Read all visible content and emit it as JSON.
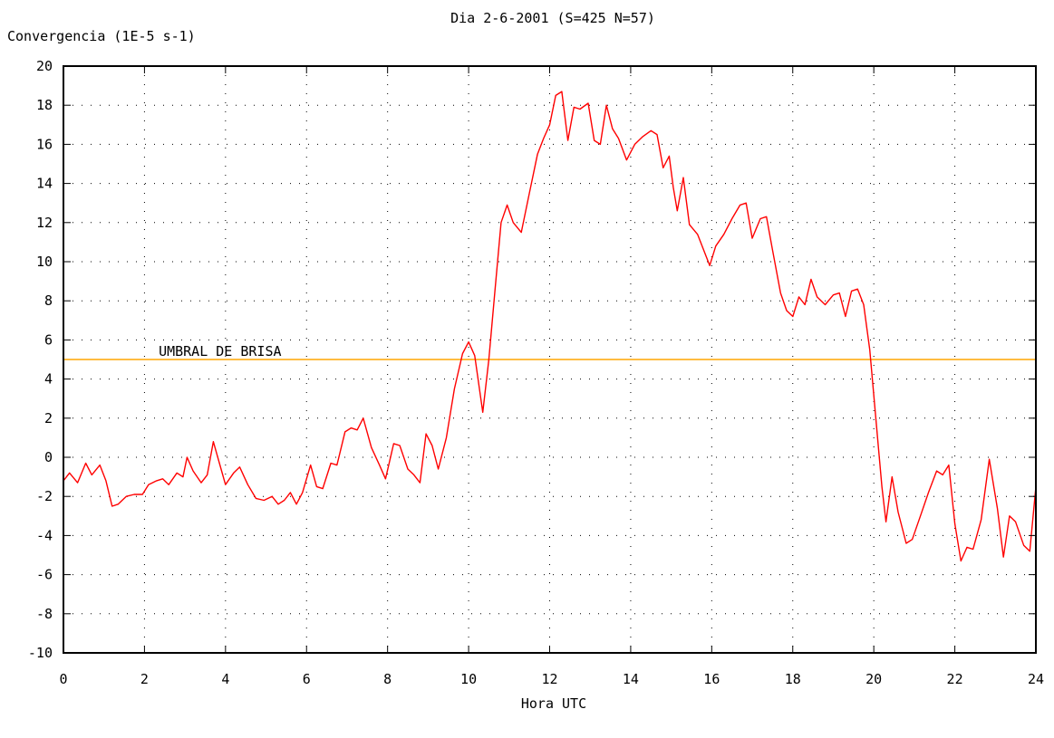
{
  "chart_data": {
    "type": "line",
    "title": "Dia 2-6-2001 (S=425 N=57)",
    "xlabel": "Hora UTC",
    "ylabel": "Convergencia (1E-5 s-1)",
    "xlim": [
      0,
      24
    ],
    "ylim": [
      -10,
      20
    ],
    "xticks": [
      0,
      2,
      4,
      6,
      8,
      10,
      12,
      14,
      16,
      18,
      20,
      22,
      24
    ],
    "yticks": [
      -10,
      -8,
      -6,
      -4,
      -2,
      0,
      2,
      4,
      6,
      8,
      10,
      12,
      14,
      16,
      18,
      20
    ],
    "grid": true,
    "threshold": {
      "label": "UMBRAL DE BRISA",
      "value": 5,
      "color": "#ffa500"
    },
    "series": [
      {
        "color": "#ff0000",
        "points": [
          [
            0.0,
            -1.2
          ],
          [
            0.15,
            -0.8
          ],
          [
            0.35,
            -1.3
          ],
          [
            0.55,
            -0.3
          ],
          [
            0.7,
            -0.9
          ],
          [
            0.9,
            -0.4
          ],
          [
            1.05,
            -1.2
          ],
          [
            1.2,
            -2.5
          ],
          [
            1.35,
            -2.4
          ],
          [
            1.55,
            -2.0
          ],
          [
            1.75,
            -1.9
          ],
          [
            1.95,
            -1.9
          ],
          [
            2.1,
            -1.4
          ],
          [
            2.3,
            -1.2
          ],
          [
            2.45,
            -1.1
          ],
          [
            2.6,
            -1.4
          ],
          [
            2.8,
            -0.8
          ],
          [
            2.95,
            -1.0
          ],
          [
            3.05,
            0.0
          ],
          [
            3.2,
            -0.7
          ],
          [
            3.4,
            -1.3
          ],
          [
            3.55,
            -0.9
          ],
          [
            3.7,
            0.8
          ],
          [
            3.85,
            -0.3
          ],
          [
            4.0,
            -1.4
          ],
          [
            4.2,
            -0.8
          ],
          [
            4.35,
            -0.5
          ],
          [
            4.55,
            -1.4
          ],
          [
            4.75,
            -2.1
          ],
          [
            4.95,
            -2.2
          ],
          [
            5.15,
            -2.0
          ],
          [
            5.3,
            -2.4
          ],
          [
            5.45,
            -2.2
          ],
          [
            5.6,
            -1.8
          ],
          [
            5.75,
            -2.4
          ],
          [
            5.9,
            -1.8
          ],
          [
            6.1,
            -0.4
          ],
          [
            6.25,
            -1.5
          ],
          [
            6.4,
            -1.6
          ],
          [
            6.6,
            -0.3
          ],
          [
            6.75,
            -0.4
          ],
          [
            6.95,
            1.3
          ],
          [
            7.1,
            1.5
          ],
          [
            7.25,
            1.4
          ],
          [
            7.4,
            2.0
          ],
          [
            7.6,
            0.5
          ],
          [
            7.8,
            -0.4
          ],
          [
            7.95,
            -1.1
          ],
          [
            8.15,
            0.7
          ],
          [
            8.3,
            0.6
          ],
          [
            8.5,
            -0.6
          ],
          [
            8.65,
            -0.9
          ],
          [
            8.8,
            -1.3
          ],
          [
            8.95,
            1.2
          ],
          [
            9.1,
            0.6
          ],
          [
            9.25,
            -0.6
          ],
          [
            9.45,
            1.0
          ],
          [
            9.65,
            3.5
          ],
          [
            9.85,
            5.3
          ],
          [
            10.0,
            5.9
          ],
          [
            10.15,
            5.2
          ],
          [
            10.35,
            2.3
          ],
          [
            10.5,
            5.0
          ],
          [
            10.65,
            8.5
          ],
          [
            10.8,
            12.0
          ],
          [
            10.95,
            12.9
          ],
          [
            11.1,
            12.0
          ],
          [
            11.3,
            11.5
          ],
          [
            11.5,
            13.5
          ],
          [
            11.7,
            15.5
          ],
          [
            11.85,
            16.3
          ],
          [
            12.0,
            17.0
          ],
          [
            12.15,
            18.5
          ],
          [
            12.3,
            18.7
          ],
          [
            12.45,
            16.2
          ],
          [
            12.6,
            17.9
          ],
          [
            12.75,
            17.8
          ],
          [
            12.95,
            18.1
          ],
          [
            13.1,
            16.2
          ],
          [
            13.25,
            16.0
          ],
          [
            13.4,
            18.0
          ],
          [
            13.55,
            16.8
          ],
          [
            13.7,
            16.3
          ],
          [
            13.9,
            15.2
          ],
          [
            14.1,
            16.0
          ],
          [
            14.3,
            16.4
          ],
          [
            14.5,
            16.7
          ],
          [
            14.65,
            16.5
          ],
          [
            14.8,
            14.8
          ],
          [
            14.95,
            15.4
          ],
          [
            15.05,
            13.8
          ],
          [
            15.15,
            12.6
          ],
          [
            15.3,
            14.3
          ],
          [
            15.45,
            11.9
          ],
          [
            15.65,
            11.4
          ],
          [
            15.8,
            10.6
          ],
          [
            15.95,
            9.8
          ],
          [
            16.1,
            10.8
          ],
          [
            16.3,
            11.4
          ],
          [
            16.5,
            12.2
          ],
          [
            16.7,
            12.9
          ],
          [
            16.85,
            13.0
          ],
          [
            17.0,
            11.2
          ],
          [
            17.2,
            12.2
          ],
          [
            17.35,
            12.3
          ],
          [
            17.5,
            10.6
          ],
          [
            17.7,
            8.4
          ],
          [
            17.85,
            7.5
          ],
          [
            18.0,
            7.2
          ],
          [
            18.15,
            8.2
          ],
          [
            18.3,
            7.8
          ],
          [
            18.45,
            9.1
          ],
          [
            18.6,
            8.2
          ],
          [
            18.8,
            7.8
          ],
          [
            19.0,
            8.3
          ],
          [
            19.15,
            8.4
          ],
          [
            19.3,
            7.2
          ],
          [
            19.45,
            8.5
          ],
          [
            19.6,
            8.6
          ],
          [
            19.75,
            7.8
          ],
          [
            19.9,
            5.5
          ],
          [
            20.05,
            2.0
          ],
          [
            20.2,
            -1.5
          ],
          [
            20.3,
            -3.3
          ],
          [
            20.45,
            -1.0
          ],
          [
            20.6,
            -2.8
          ],
          [
            20.8,
            -4.4
          ],
          [
            20.95,
            -4.2
          ],
          [
            21.15,
            -3.0
          ],
          [
            21.35,
            -1.8
          ],
          [
            21.55,
            -0.7
          ],
          [
            21.7,
            -0.9
          ],
          [
            21.85,
            -0.4
          ],
          [
            22.0,
            -3.4
          ],
          [
            22.15,
            -5.3
          ],
          [
            22.3,
            -4.6
          ],
          [
            22.45,
            -4.7
          ],
          [
            22.65,
            -3.2
          ],
          [
            22.85,
            -0.1
          ],
          [
            23.05,
            -2.6
          ],
          [
            23.2,
            -5.1
          ],
          [
            23.35,
            -3.0
          ],
          [
            23.5,
            -3.3
          ],
          [
            23.7,
            -4.5
          ],
          [
            23.85,
            -4.8
          ],
          [
            24.0,
            -1.5
          ]
        ]
      }
    ]
  }
}
